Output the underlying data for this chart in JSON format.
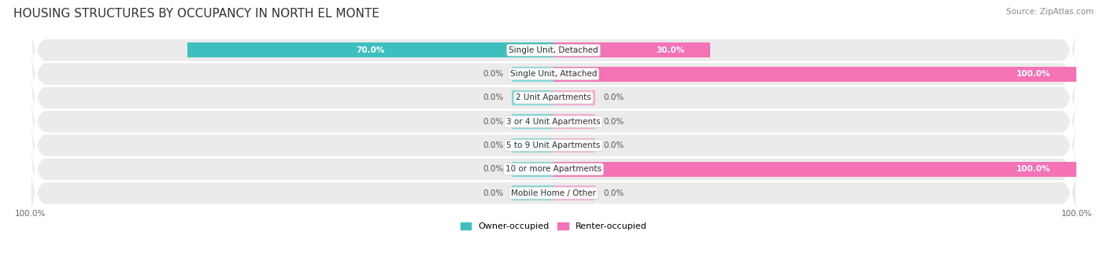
{
  "title": "HOUSING STRUCTURES BY OCCUPANCY IN NORTH EL MONTE",
  "source": "Source: ZipAtlas.com",
  "categories": [
    "Single Unit, Detached",
    "Single Unit, Attached",
    "2 Unit Apartments",
    "3 or 4 Unit Apartments",
    "5 to 9 Unit Apartments",
    "10 or more Apartments",
    "Mobile Home / Other"
  ],
  "owner_occupied": [
    70.0,
    0.0,
    0.0,
    0.0,
    0.0,
    0.0,
    0.0
  ],
  "renter_occupied": [
    30.0,
    100.0,
    0.0,
    0.0,
    0.0,
    100.0,
    0.0
  ],
  "owner_color": "#3DBFBF",
  "renter_color": "#F472B6",
  "owner_stub_color": "#7DD8D8",
  "renter_stub_color": "#F9A8D4",
  "row_bg_color": "#EBEBEB",
  "title_fontsize": 11,
  "label_fontsize": 7.5,
  "tick_fontsize": 7.5,
  "legend_fontsize": 8,
  "value_fontsize": 7.5
}
